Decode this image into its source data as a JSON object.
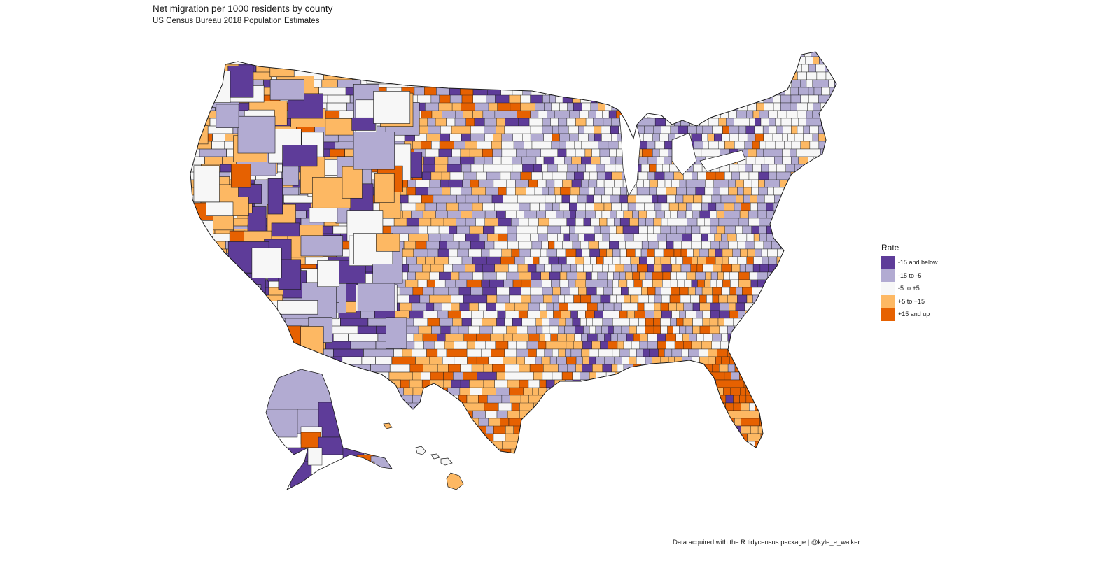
{
  "header": {
    "title": "Net migration per 1000 residents by county",
    "subtitle": "US Census Bureau 2018 Population Estimates"
  },
  "caption": "Data acquired with the R tidycensus package | @kyle_e_walker",
  "legend": {
    "title": "Rate",
    "items": [
      {
        "label": "-15 and below",
        "color": "#5e3c99"
      },
      {
        "label": "-15 to -5",
        "color": "#b2abd2"
      },
      {
        "label": "-5 to +5",
        "color": "#f7f7f7"
      },
      {
        "label": "+5 to +15",
        "color": "#fdb863"
      },
      {
        "label": "+15 and up",
        "color": "#e66101"
      }
    ]
  },
  "map": {
    "type": "choropleth",
    "geography": "US counties",
    "variable": "Net migration rate per 1000 residents",
    "regions_shown": [
      "Contiguous United States",
      "Alaska",
      "Hawaii"
    ],
    "border_color": "#1a1a1a"
  },
  "chart_data": {
    "type": "heatmap",
    "title": "Net migration per 1000 residents by county",
    "subtitle": "US Census Bureau 2018 Population Estimates",
    "legend_title": "Rate",
    "bins": [
      "-15 and below",
      "-15 to -5",
      "-5 to +5",
      "+5 to +15",
      "+15 and up"
    ],
    "colors": [
      "#5e3c99",
      "#b2abd2",
      "#f7f7f7",
      "#fdb863",
      "#e66101"
    ],
    "legend_position": "right",
    "caption": "Data acquired with the R tidycensus package | @kyle_e_walker"
  }
}
